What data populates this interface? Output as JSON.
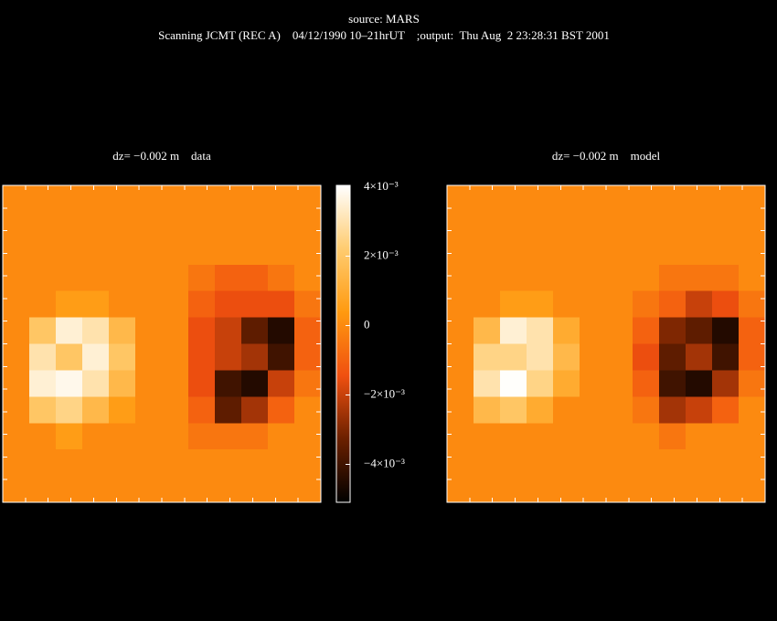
{
  "chart_data": {
    "type": "heatmap",
    "title": "source: MARS",
    "subtitle": "Scanning JCMT (REC A)    04/12/1990 10–21hrUT    ;output:  Thu Aug  2 23:28:31 BST 2001",
    "ylim": [
      -0.0051,
      0.00405
    ],
    "yticks": [
      {
        "value": 0.004,
        "label": "4×10⁻³"
      },
      {
        "value": 0.002,
        "label": "2×10⁻³"
      },
      0,
      {
        "value": -0.002,
        "label": "−2×10⁻³"
      },
      {
        "value": -0.004,
        "label": "−4×10⁻³"
      }
    ],
    "colorscale": [
      "#000000",
      "#6b2000",
      "#f05010",
      "#ff9a10",
      "#ffcc70",
      "#ffffff"
    ],
    "panels": [
      {
        "title": "dz= −0.002 m    data",
        "values": [
          [
            0,
            0,
            0,
            0,
            0,
            0,
            0,
            0,
            0,
            0,
            0,
            0
          ],
          [
            0,
            0,
            0,
            0,
            0,
            0,
            0,
            0,
            0,
            0,
            0,
            0
          ],
          [
            0,
            0,
            0,
            0,
            0,
            0,
            0,
            0,
            0,
            0,
            0,
            0
          ],
          [
            0,
            0,
            0,
            0,
            0,
            0,
            0,
            -0.0005,
            -0.001,
            -0.001,
            -0.0005,
            0
          ],
          [
            0,
            0,
            0.0005,
            0.0005,
            0,
            0,
            0,
            -0.001,
            -0.0015,
            -0.0015,
            -0.0015,
            -0.0005
          ],
          [
            0,
            0.002,
            0.0035,
            0.003,
            0.0015,
            0,
            0,
            -0.0015,
            -0.002,
            -0.0035,
            -0.0045,
            -0.001
          ],
          [
            0,
            0.003,
            0.002,
            0.0035,
            0.002,
            0,
            0,
            -0.0015,
            -0.002,
            -0.0025,
            -0.004,
            -0.001
          ],
          [
            0,
            0.0035,
            0.0038,
            0.003,
            0.0015,
            0,
            0,
            -0.0015,
            -0.004,
            -0.0045,
            -0.002,
            -0.0005
          ],
          [
            0,
            0.002,
            0.0025,
            0.0015,
            0.0005,
            0,
            0,
            -0.001,
            -0.0035,
            -0.0025,
            -0.001,
            0
          ],
          [
            0,
            0,
            0.0005,
            0,
            0,
            0,
            0,
            -0.0005,
            -0.0005,
            -0.0005,
            0,
            0
          ],
          [
            0,
            0,
            0,
            0,
            0,
            0,
            0,
            0,
            0,
            0,
            0,
            0
          ],
          [
            0,
            0,
            0,
            0,
            0,
            0,
            0,
            0,
            0,
            0,
            0,
            0
          ]
        ]
      },
      {
        "title": "dz= −0.002 m    model",
        "values": [
          [
            0,
            0,
            0,
            0,
            0,
            0,
            0,
            0,
            0,
            0,
            0,
            0
          ],
          [
            0,
            0,
            0,
            0,
            0,
            0,
            0,
            0,
            0,
            0,
            0,
            0
          ],
          [
            0,
            0,
            0,
            0,
            0,
            0,
            0,
            0,
            0,
            0,
            0,
            0
          ],
          [
            0,
            0,
            0,
            0,
            0,
            0,
            0,
            0,
            -0.0005,
            -0.0005,
            -0.0005,
            0
          ],
          [
            0,
            0,
            0.0005,
            0.0005,
            0,
            0,
            0,
            -0.0005,
            -0.001,
            -0.002,
            -0.0015,
            -0.0005
          ],
          [
            0,
            0.0015,
            0.0035,
            0.003,
            0.001,
            0,
            0,
            -0.001,
            -0.003,
            -0.0035,
            -0.0045,
            -0.001
          ],
          [
            0,
            0.0025,
            0.0025,
            0.003,
            0.0015,
            0,
            0,
            -0.0015,
            -0.0035,
            -0.0025,
            -0.004,
            -0.001
          ],
          [
            0,
            0.003,
            0.004,
            0.0025,
            0.001,
            0,
            0,
            -0.001,
            -0.004,
            -0.0045,
            -0.0025,
            -0.0005
          ],
          [
            0,
            0.0015,
            0.002,
            0.001,
            0,
            0,
            0,
            -0.0005,
            -0.0025,
            -0.002,
            -0.001,
            0
          ],
          [
            0,
            0,
            0,
            0,
            0,
            0,
            0,
            0,
            -0.0005,
            0,
            0,
            0
          ],
          [
            0,
            0,
            0,
            0,
            0,
            0,
            0,
            0,
            0,
            0,
            0,
            0
          ],
          [
            0,
            0,
            0,
            0,
            0,
            0,
            0,
            0,
            0,
            0,
            0,
            0
          ]
        ]
      }
    ]
  }
}
